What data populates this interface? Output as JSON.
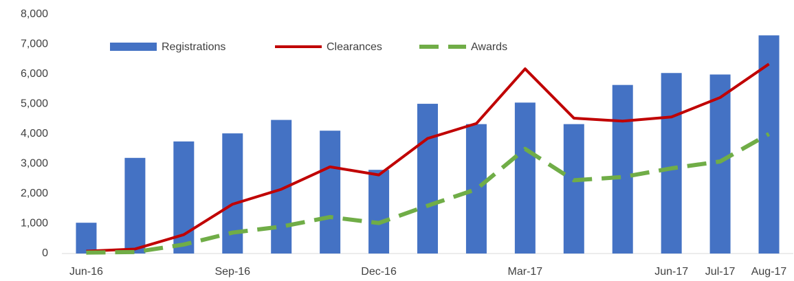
{
  "chart_data": {
    "type": "bar-line",
    "categories": [
      "Jun-16",
      null,
      null,
      "Sep-16",
      null,
      null,
      "Dec-16",
      null,
      null,
      "Mar-17",
      null,
      null,
      "Jun-17",
      "Jul-17",
      "Aug-17"
    ],
    "series": [
      {
        "name": "Registrations",
        "type": "bar",
        "color": "#4472c4",
        "values": [
          1030,
          3200,
          3750,
          4020,
          4470,
          4110,
          2800,
          5010,
          4330,
          5050,
          4330,
          5640,
          6040,
          5990,
          7300
        ]
      },
      {
        "name": "Clearances",
        "type": "line",
        "color": "#c00000",
        "values": [
          80,
          150,
          630,
          1650,
          2150,
          2900,
          2630,
          3850,
          4350,
          6180,
          4530,
          4430,
          4570,
          5220,
          6340
        ]
      },
      {
        "name": "Awards",
        "type": "dashed-line",
        "color": "#70ad47",
        "values": [
          30,
          50,
          300,
          700,
          900,
          1220,
          1020,
          1600,
          2150,
          3500,
          2450,
          2560,
          2850,
          3080,
          4000
        ]
      }
    ],
    "ylim": [
      0,
      8000
    ],
    "yticks": [
      0,
      {
        "value": 1000,
        "label": "1,000"
      },
      {
        "value": 2000,
        "label": "2,000"
      },
      {
        "value": 3000,
        "label": "3,000"
      },
      {
        "value": 4000,
        "label": "4,000"
      },
      {
        "value": 5000,
        "label": "5,000"
      },
      {
        "value": 6000,
        "label": "6,000"
      },
      {
        "value": 7000,
        "label": "7,000"
      },
      {
        "value": 8000,
        "label": "8,000"
      }
    ],
    "grid": false,
    "legend": "top"
  }
}
